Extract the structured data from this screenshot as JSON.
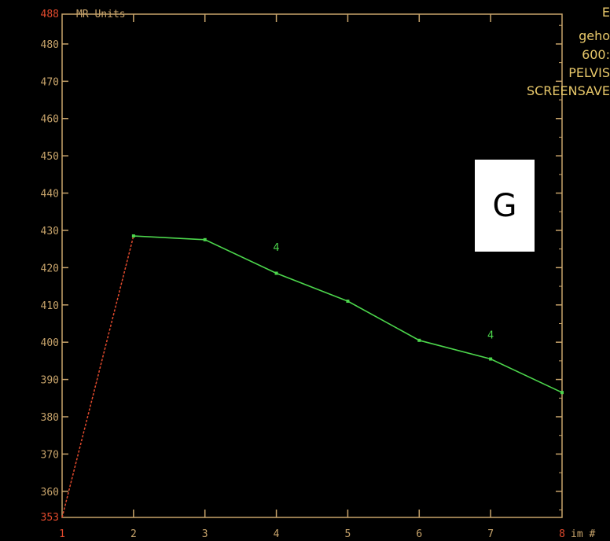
{
  "panel_label": "G",
  "info_lines": [
    "E",
    "geho",
    "600:",
    "PELVIS",
    "SCREENSAVE"
  ],
  "chart_data": {
    "type": "line",
    "ylabel": "MR Units",
    "xlabel": "im #",
    "xlim": [
      1,
      8
    ],
    "ylim": [
      353,
      488
    ],
    "x_ticks": [
      "1",
      "2",
      "3",
      "4",
      "5",
      "6",
      "7",
      "8"
    ],
    "y_ticks": [
      "353",
      "360",
      "370",
      "380",
      "390",
      "400",
      "410",
      "420",
      "430",
      "440",
      "450",
      "460",
      "470",
      "480",
      "488"
    ],
    "baseline_segment": {
      "x": [
        1,
        2
      ],
      "y": [
        353,
        428.5
      ]
    },
    "series": [
      {
        "x": [
          2,
          3,
          4,
          5,
          6,
          7,
          8
        ],
        "y": [
          428.5,
          427.5,
          418.5,
          411,
          400.5,
          395.5,
          386.5
        ]
      }
    ],
    "annotations": [
      {
        "text": "4",
        "x": 4,
        "y": 424.5
      },
      {
        "text": "4",
        "x": 7,
        "y": 401
      }
    ],
    "colors": {
      "axis": "#c8a46b",
      "series": "#4cd64c",
      "baseline": "#e24a2d",
      "endpoint_labels": "#e24a2d",
      "side_text": "#e8c86a"
    }
  }
}
